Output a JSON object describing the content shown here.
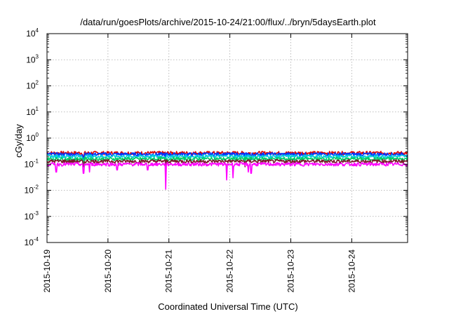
{
  "chart_data": {
    "type": "line",
    "title": "/data/run/goesPlots/archive/2015-10-24/21:00/flux/../bryn/5daysEarth.plot",
    "xlabel": "Coordinated Universal Time (UTC)",
    "ylabel": "cGy/day",
    "yscale": "log",
    "ylim": [
      0.0001,
      10000
    ],
    "y_ticks": [
      {
        "base": "10",
        "exp": "-4"
      },
      {
        "base": "10",
        "exp": "-3"
      },
      {
        "base": "10",
        "exp": "-2"
      },
      {
        "base": "10",
        "exp": "-1"
      },
      {
        "base": "10",
        "exp": "0"
      },
      {
        "base": "10",
        "exp": "1"
      },
      {
        "base": "10",
        "exp": "2"
      },
      {
        "base": "10",
        "exp": "3"
      },
      {
        "base": "10",
        "exp": "4"
      }
    ],
    "xlim": [
      "2015-10-19",
      "2015-10-24T22:00"
    ],
    "x_ticks": [
      "2015-10-19",
      "2015-10-20",
      "2015-10-21",
      "2015-10-22",
      "2015-10-23",
      "2015-10-24"
    ],
    "grid": true,
    "series": [
      {
        "color": "#dd0000",
        "base": 0.27,
        "dips": [
          [
            0.6,
            0.18
          ],
          [
            1.95,
            0.17
          ],
          [
            3.25,
            0.18
          ],
          [
            3.35,
            0.17
          ]
        ]
      },
      {
        "color": "#0033ff",
        "base": 0.24,
        "dips": [
          [
            0.6,
            0.16
          ],
          [
            1.95,
            0.15
          ],
          [
            3.25,
            0.16
          ],
          [
            3.35,
            0.15
          ]
        ]
      },
      {
        "color": "#00ccdd",
        "base": 0.2,
        "dips": [
          [
            0.6,
            0.13
          ],
          [
            1.95,
            0.12
          ],
          [
            3.25,
            0.13
          ]
        ]
      },
      {
        "color": "#00cc66",
        "base": 0.16,
        "dips": [
          [
            0.6,
            0.11
          ],
          [
            1.95,
            0.1
          ],
          [
            3.25,
            0.11
          ]
        ]
      },
      {
        "color": "#7a1a2a",
        "base": 0.13,
        "dips": [
          [
            0.6,
            0.08
          ],
          [
            1.95,
            0.07
          ],
          [
            3.25,
            0.08
          ]
        ]
      },
      {
        "color": "#ff00ff",
        "base": 0.1,
        "dips": [
          [
            0.15,
            0.05
          ],
          [
            0.6,
            0.045
          ],
          [
            0.7,
            0.05
          ],
          [
            1.15,
            0.06
          ],
          [
            1.65,
            0.06
          ],
          [
            1.95,
            0.011
          ],
          [
            2.95,
            0.025
          ],
          [
            3.05,
            0.03
          ],
          [
            3.3,
            0.05
          ],
          [
            3.35,
            0.045
          ]
        ]
      }
    ]
  }
}
